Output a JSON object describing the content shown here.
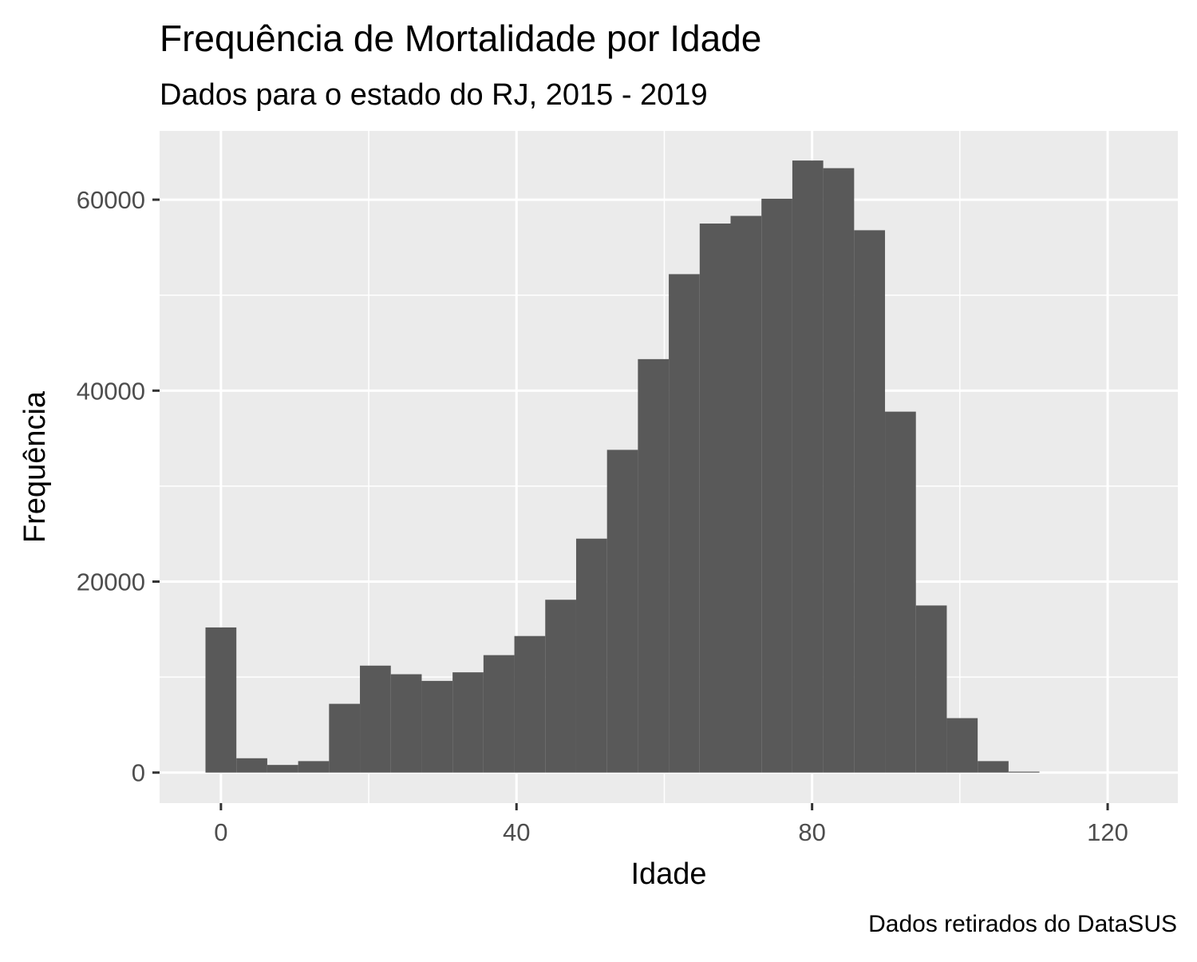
{
  "chart_data": {
    "type": "bar",
    "title": "Frequência de Mortalidade por Idade",
    "subtitle": "Dados para o estado do RJ, 2015 - 2019",
    "caption": "Dados retirados do DataSUS",
    "xlabel": "Idade",
    "ylabel": "Frequência",
    "xlim": [
      -8.3,
      129.5
    ],
    "ylim": [
      -3200,
      67200
    ],
    "x_ticks": [
      0,
      40,
      80,
      120
    ],
    "x_minor_ticks": [
      20,
      60,
      100
    ],
    "y_ticks": [
      0,
      20000,
      40000,
      60000
    ],
    "y_minor_ticks": [
      10000,
      30000,
      50000
    ],
    "grid": true,
    "bin_width": 4.18,
    "bin_centers": [
      0,
      4.18,
      8.36,
      12.54,
      16.72,
      20.9,
      25.08,
      29.26,
      33.44,
      37.62,
      41.8,
      45.98,
      50.16,
      54.34,
      58.52,
      62.7,
      66.88,
      71.06,
      75.24,
      79.42,
      83.6,
      87.78,
      91.96,
      96.14,
      100.32,
      104.5,
      108.68
    ],
    "values": [
      15200,
      1500,
      800,
      1200,
      7200,
      11200,
      10300,
      9600,
      10500,
      12300,
      14300,
      18100,
      24500,
      33800,
      43300,
      52200,
      57500,
      58300,
      60100,
      64100,
      63300,
      56800,
      37800,
      17500,
      5700,
      1200,
      100
    ],
    "colors": {
      "bar": "#595959",
      "panel": "#ebebeb",
      "grid": "#ffffff"
    }
  }
}
